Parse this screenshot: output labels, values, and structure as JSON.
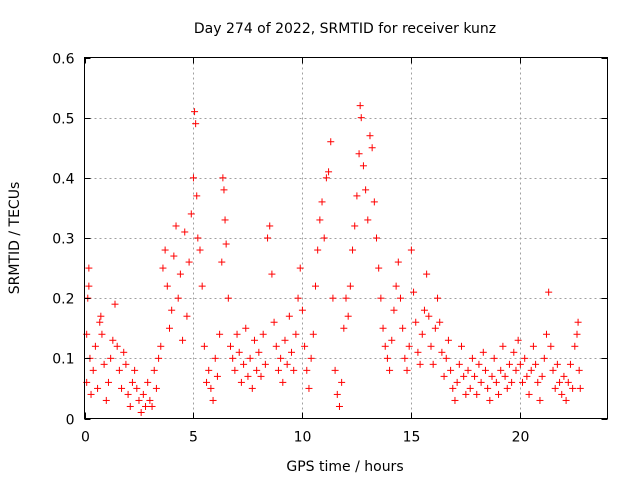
{
  "chart_data": {
    "type": "scatter",
    "title": "Day 274 of 2022, SRMTID for receiver kunz",
    "xlabel": "GPS time / hours",
    "ylabel": "SRMTID / TECUs",
    "xlim": [
      0,
      24
    ],
    "ylim": [
      0,
      0.6
    ],
    "xticks": [
      0,
      5,
      10,
      15,
      20
    ],
    "yticks": [
      0,
      0.1,
      0.2,
      0.3,
      0.4,
      0.5,
      0.6
    ],
    "xtick_labels": [
      "0",
      "5",
      "10",
      "15",
      "20"
    ],
    "ytick_labels": [
      "0",
      "0.1",
      "0.2",
      "0.3",
      "0.4",
      "0.5",
      "0.6"
    ],
    "grid": true,
    "marker": "+",
    "color": "#ff0000",
    "series": [
      {
        "name": "SRMTID",
        "points": [
          [
            0.1,
            0.14
          ],
          [
            0.1,
            0.06
          ],
          [
            0.15,
            0.2
          ],
          [
            0.2,
            0.25
          ],
          [
            0.2,
            0.22
          ],
          [
            0.25,
            0.1
          ],
          [
            0.3,
            0.04
          ],
          [
            0.4,
            0.08
          ],
          [
            0.5,
            0.12
          ],
          [
            0.6,
            0.05
          ],
          [
            0.7,
            0.16
          ],
          [
            0.75,
            0.17
          ],
          [
            0.8,
            0.14
          ],
          [
            0.9,
            0.09
          ],
          [
            1.0,
            0.03
          ],
          [
            1.1,
            0.06
          ],
          [
            1.2,
            0.1
          ],
          [
            1.3,
            0.13
          ],
          [
            1.4,
            0.19
          ],
          [
            1.5,
            0.12
          ],
          [
            1.6,
            0.08
          ],
          [
            1.7,
            0.05
          ],
          [
            1.8,
            0.11
          ],
          [
            1.9,
            0.09
          ],
          [
            2.0,
            0.04
          ],
          [
            2.1,
            0.02
          ],
          [
            2.2,
            0.06
          ],
          [
            2.3,
            0.08
          ],
          [
            2.4,
            0.05
          ],
          [
            2.5,
            0.03
          ],
          [
            2.6,
            0.01
          ],
          [
            2.7,
            0.04
          ],
          [
            2.8,
            0.02
          ],
          [
            2.9,
            0.06
          ],
          [
            3.0,
            0.03
          ],
          [
            3.1,
            0.02
          ],
          [
            3.2,
            0.08
          ],
          [
            3.3,
            0.05
          ],
          [
            3.4,
            0.1
          ],
          [
            3.5,
            0.12
          ],
          [
            3.6,
            0.25
          ],
          [
            3.7,
            0.28
          ],
          [
            3.8,
            0.22
          ],
          [
            3.9,
            0.15
          ],
          [
            4.0,
            0.18
          ],
          [
            4.1,
            0.27
          ],
          [
            4.2,
            0.32
          ],
          [
            4.3,
            0.2
          ],
          [
            4.4,
            0.24
          ],
          [
            4.5,
            0.13
          ],
          [
            4.6,
            0.31
          ],
          [
            4.7,
            0.17
          ],
          [
            4.8,
            0.26
          ],
          [
            4.9,
            0.34
          ],
          [
            5.0,
            0.4
          ],
          [
            5.05,
            0.51
          ],
          [
            5.1,
            0.49
          ],
          [
            5.15,
            0.37
          ],
          [
            5.2,
            0.3
          ],
          [
            5.3,
            0.28
          ],
          [
            5.4,
            0.22
          ],
          [
            5.5,
            0.12
          ],
          [
            5.6,
            0.06
          ],
          [
            5.7,
            0.08
          ],
          [
            5.8,
            0.05
          ],
          [
            5.9,
            0.03
          ],
          [
            6.0,
            0.1
          ],
          [
            6.1,
            0.07
          ],
          [
            6.2,
            0.14
          ],
          [
            6.3,
            0.26
          ],
          [
            6.35,
            0.4
          ],
          [
            6.4,
            0.38
          ],
          [
            6.45,
            0.33
          ],
          [
            6.5,
            0.29
          ],
          [
            6.6,
            0.2
          ],
          [
            6.7,
            0.12
          ],
          [
            6.8,
            0.1
          ],
          [
            6.9,
            0.08
          ],
          [
            7.0,
            0.14
          ],
          [
            7.1,
            0.11
          ],
          [
            7.2,
            0.06
          ],
          [
            7.3,
            0.09
          ],
          [
            7.4,
            0.15
          ],
          [
            7.5,
            0.07
          ],
          [
            7.6,
            0.1
          ],
          [
            7.7,
            0.05
          ],
          [
            7.8,
            0.13
          ],
          [
            7.9,
            0.08
          ],
          [
            8.0,
            0.11
          ],
          [
            8.1,
            0.07
          ],
          [
            8.2,
            0.14
          ],
          [
            8.3,
            0.09
          ],
          [
            8.4,
            0.3
          ],
          [
            8.5,
            0.32
          ],
          [
            8.6,
            0.24
          ],
          [
            8.7,
            0.16
          ],
          [
            8.8,
            0.12
          ],
          [
            8.9,
            0.08
          ],
          [
            9.0,
            0.1
          ],
          [
            9.1,
            0.06
          ],
          [
            9.2,
            0.13
          ],
          [
            9.3,
            0.09
          ],
          [
            9.4,
            0.17
          ],
          [
            9.5,
            0.11
          ],
          [
            9.6,
            0.08
          ],
          [
            9.7,
            0.14
          ],
          [
            9.8,
            0.2
          ],
          [
            9.9,
            0.25
          ],
          [
            10.0,
            0.18
          ],
          [
            10.1,
            0.12
          ],
          [
            10.2,
            0.08
          ],
          [
            10.3,
            0.05
          ],
          [
            10.4,
            0.1
          ],
          [
            10.5,
            0.14
          ],
          [
            10.6,
            0.22
          ],
          [
            10.7,
            0.28
          ],
          [
            10.8,
            0.33
          ],
          [
            10.9,
            0.36
          ],
          [
            11.0,
            0.3
          ],
          [
            11.1,
            0.4
          ],
          [
            11.2,
            0.41
          ],
          [
            11.3,
            0.46
          ],
          [
            11.4,
            0.2
          ],
          [
            11.5,
            0.08
          ],
          [
            11.6,
            0.04
          ],
          [
            11.7,
            0.02
          ],
          [
            11.8,
            0.06
          ],
          [
            11.9,
            0.15
          ],
          [
            12.0,
            0.2
          ],
          [
            12.1,
            0.17
          ],
          [
            12.2,
            0.22
          ],
          [
            12.3,
            0.28
          ],
          [
            12.4,
            0.32
          ],
          [
            12.5,
            0.37
          ],
          [
            12.6,
            0.44
          ],
          [
            12.65,
            0.52
          ],
          [
            12.7,
            0.5
          ],
          [
            12.8,
            0.42
          ],
          [
            12.9,
            0.38
          ],
          [
            13.0,
            0.33
          ],
          [
            13.1,
            0.47
          ],
          [
            13.2,
            0.45
          ],
          [
            13.3,
            0.36
          ],
          [
            13.4,
            0.3
          ],
          [
            13.5,
            0.25
          ],
          [
            13.6,
            0.2
          ],
          [
            13.7,
            0.15
          ],
          [
            13.8,
            0.12
          ],
          [
            13.9,
            0.1
          ],
          [
            14.0,
            0.08
          ],
          [
            14.1,
            0.13
          ],
          [
            14.2,
            0.18
          ],
          [
            14.3,
            0.22
          ],
          [
            14.4,
            0.26
          ],
          [
            14.5,
            0.2
          ],
          [
            14.6,
            0.15
          ],
          [
            14.7,
            0.1
          ],
          [
            14.8,
            0.08
          ],
          [
            14.9,
            0.12
          ],
          [
            15.0,
            0.28
          ],
          [
            15.1,
            0.21
          ],
          [
            15.2,
            0.16
          ],
          [
            15.3,
            0.11
          ],
          [
            15.4,
            0.09
          ],
          [
            15.5,
            0.14
          ],
          [
            15.6,
            0.18
          ],
          [
            15.7,
            0.24
          ],
          [
            15.8,
            0.17
          ],
          [
            15.9,
            0.12
          ],
          [
            16.0,
            0.09
          ],
          [
            16.1,
            0.15
          ],
          [
            16.2,
            0.2
          ],
          [
            16.3,
            0.16
          ],
          [
            16.4,
            0.11
          ],
          [
            16.5,
            0.07
          ],
          [
            16.6,
            0.1
          ],
          [
            16.7,
            0.13
          ],
          [
            16.8,
            0.08
          ],
          [
            16.9,
            0.05
          ],
          [
            17.0,
            0.03
          ],
          [
            17.1,
            0.06
          ],
          [
            17.2,
            0.09
          ],
          [
            17.3,
            0.12
          ],
          [
            17.4,
            0.07
          ],
          [
            17.5,
            0.04
          ],
          [
            17.6,
            0.08
          ],
          [
            17.7,
            0.05
          ],
          [
            17.8,
            0.1
          ],
          [
            17.9,
            0.07
          ],
          [
            18.0,
            0.04
          ],
          [
            18.1,
            0.09
          ],
          [
            18.2,
            0.06
          ],
          [
            18.3,
            0.11
          ],
          [
            18.4,
            0.08
          ],
          [
            18.5,
            0.05
          ],
          [
            18.6,
            0.03
          ],
          [
            18.7,
            0.07
          ],
          [
            18.8,
            0.1
          ],
          [
            18.9,
            0.06
          ],
          [
            19.0,
            0.04
          ],
          [
            19.1,
            0.08
          ],
          [
            19.2,
            0.12
          ],
          [
            19.3,
            0.07
          ],
          [
            19.4,
            0.05
          ],
          [
            19.5,
            0.09
          ],
          [
            19.6,
            0.06
          ],
          [
            19.7,
            0.11
          ],
          [
            19.8,
            0.08
          ],
          [
            19.9,
            0.13
          ],
          [
            20.0,
            0.09
          ],
          [
            20.1,
            0.06
          ],
          [
            20.2,
            0.1
          ],
          [
            20.3,
            0.07
          ],
          [
            20.4,
            0.04
          ],
          [
            20.5,
            0.08
          ],
          [
            20.6,
            0.12
          ],
          [
            20.7,
            0.09
          ],
          [
            20.8,
            0.06
          ],
          [
            20.9,
            0.03
          ],
          [
            21.0,
            0.07
          ],
          [
            21.1,
            0.1
          ],
          [
            21.2,
            0.14
          ],
          [
            21.3,
            0.21
          ],
          [
            21.4,
            0.12
          ],
          [
            21.5,
            0.08
          ],
          [
            21.6,
            0.05
          ],
          [
            21.7,
            0.09
          ],
          [
            21.8,
            0.06
          ],
          [
            21.9,
            0.04
          ],
          [
            22.0,
            0.07
          ],
          [
            22.1,
            0.03
          ],
          [
            22.2,
            0.06
          ],
          [
            22.3,
            0.09
          ],
          [
            22.4,
            0.05
          ],
          [
            22.5,
            0.12
          ],
          [
            22.6,
            0.14
          ],
          [
            22.65,
            0.16
          ],
          [
            22.7,
            0.08
          ],
          [
            22.75,
            0.05
          ]
        ]
      }
    ]
  }
}
